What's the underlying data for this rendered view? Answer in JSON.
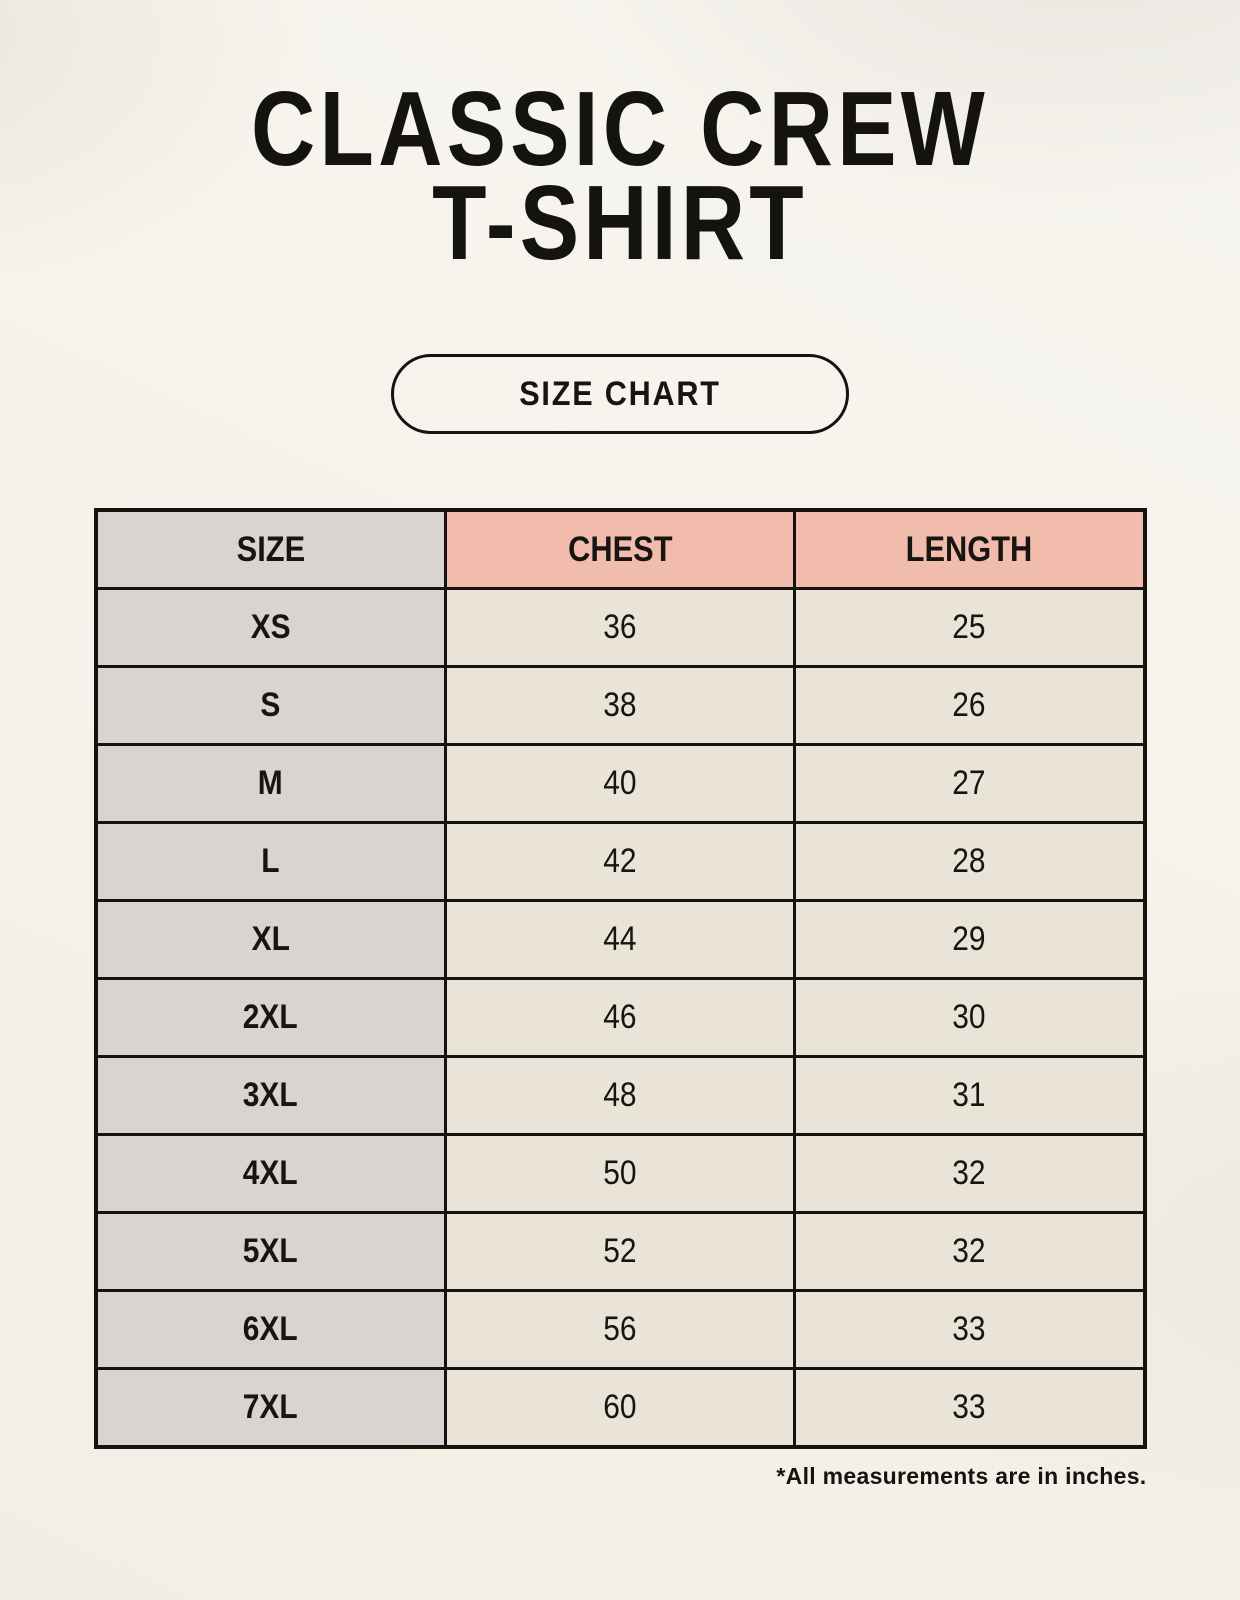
{
  "header": {
    "title_line1": "CLASSIC CREW",
    "title_line2": "T-SHIRT",
    "badge_label": "SIZE CHART"
  },
  "footer": {
    "note": "*All measurements are in inches."
  },
  "colors": {
    "background": "#f4f1e8",
    "size_column_bg": "#d9d4d0",
    "header_accent_bg": "#f1bcab",
    "value_cell_bg": "#eae3d8",
    "border": "#141310",
    "text": "#141310"
  },
  "chart_data": {
    "type": "table",
    "title": "CLASSIC CREW T-SHIRT",
    "subtitle": "SIZE CHART",
    "columns": [
      "SIZE",
      "CHEST",
      "LENGTH"
    ],
    "rows": [
      [
        "XS",
        "36",
        "25"
      ],
      [
        "S",
        "38",
        "26"
      ],
      [
        "M",
        "40",
        "27"
      ],
      [
        "L",
        "42",
        "28"
      ],
      [
        "XL",
        "44",
        "29"
      ],
      [
        "2XL",
        "46",
        "30"
      ],
      [
        "3XL",
        "48",
        "31"
      ],
      [
        "4XL",
        "50",
        "32"
      ],
      [
        "5XL",
        "52",
        "32"
      ],
      [
        "6XL",
        "56",
        "33"
      ],
      [
        "7XL",
        "60",
        "33"
      ]
    ],
    "units_note": "*All measurements are in inches.",
    "layout": {
      "header_row_accent_columns": [
        "CHEST",
        "LENGTH"
      ],
      "first_column_shaded": true,
      "grid": "on"
    }
  }
}
